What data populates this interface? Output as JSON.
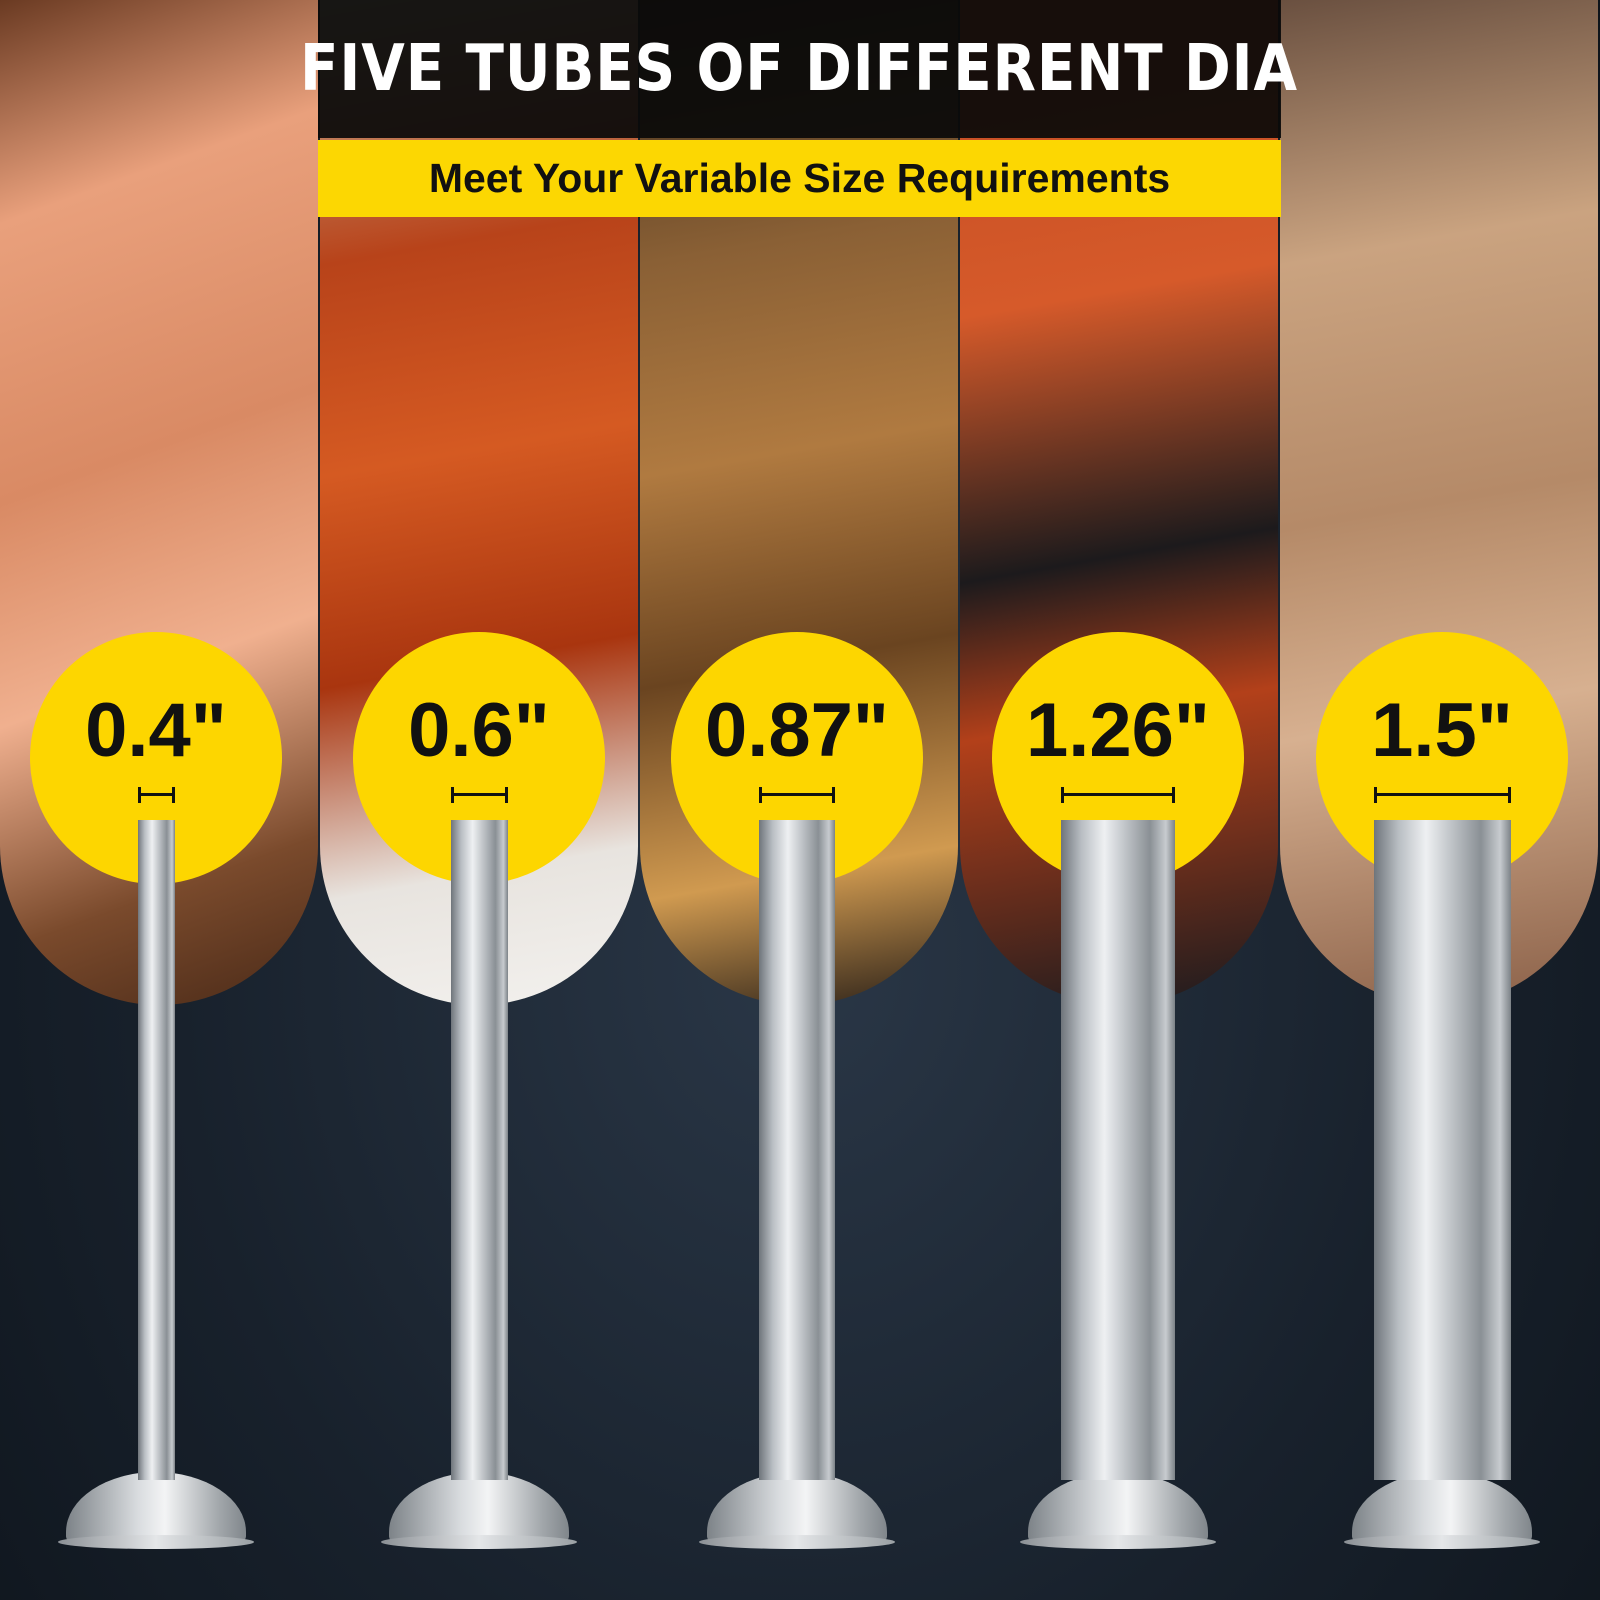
{
  "header": {
    "title": "FIVE TUBES OF DIFFERENT DIA",
    "subtitle": "Meet Your Variable Size Requirements"
  },
  "colors": {
    "accent_yellow": "#fdd600",
    "header_black": "#0a0a0a",
    "background": "#18212c"
  },
  "tubes": [
    {
      "label": "0.4\"",
      "photo": "raw hot dog sausages"
    },
    {
      "label": "0.6\"",
      "photo": "grilled frankfurters"
    },
    {
      "label": "0.87\"",
      "photo": "grilled bratwurst"
    },
    {
      "label": "1.26\"",
      "photo": "scored kielbasa ring"
    },
    {
      "label": "1.5\"",
      "photo": "grilled pork sausage with chives"
    }
  ]
}
